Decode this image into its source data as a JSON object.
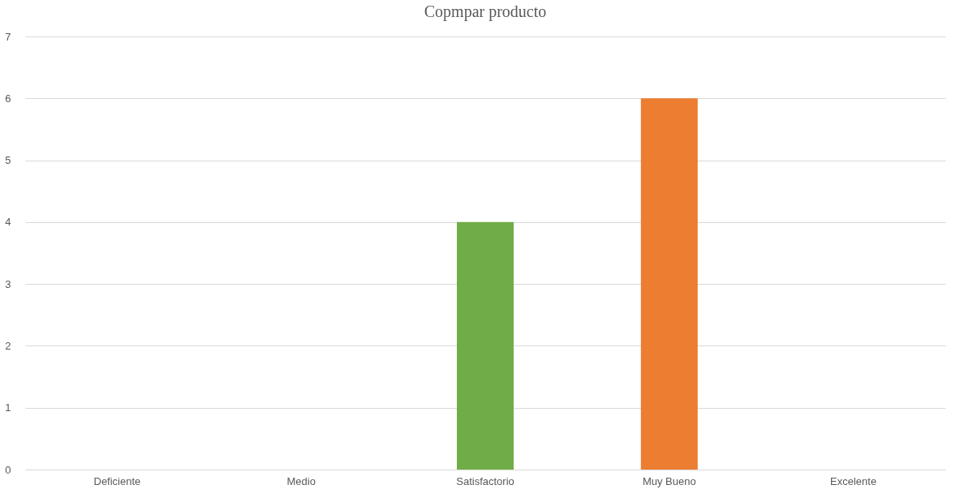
{
  "chart_data": {
    "type": "bar",
    "title": "Copmpar producto",
    "categories": [
      "Deficiente",
      "Medio",
      "Satisfactorio",
      "Muy Bueno",
      "Excelente"
    ],
    "values": [
      0,
      0,
      4,
      6,
      0
    ],
    "colors": [
      "#4472c4",
      "#4472c4",
      "#70ad47",
      "#ed7d31",
      "#4472c4"
    ],
    "ylim": [
      0,
      7
    ],
    "yticks": [
      0,
      1,
      2,
      3,
      4,
      5,
      6,
      7
    ],
    "grid": "y"
  }
}
